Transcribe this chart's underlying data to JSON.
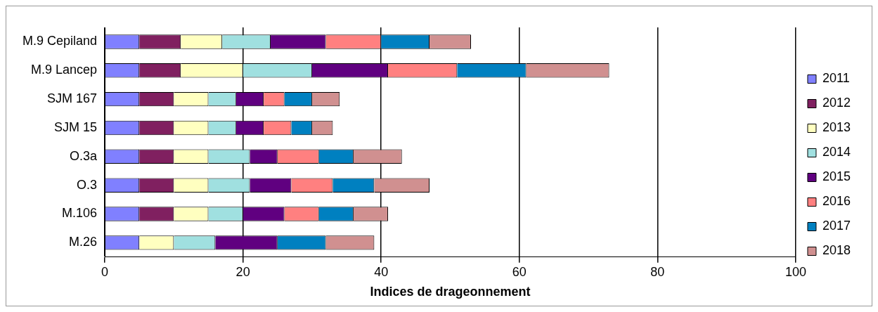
{
  "chart_data": {
    "type": "bar",
    "orientation": "horizontal",
    "stacked": true,
    "xlabel": "Indices de drageonnement",
    "categories": [
      "M.9 Cepiland",
      "M.9 Lancep",
      "SJM 167",
      "SJM 15",
      "O.3a",
      "O.3",
      "M.106",
      "M.26"
    ],
    "series": [
      {
        "name": "2011",
        "color": "#8080ff",
        "values": [
          5,
          5,
          5,
          5,
          5,
          5,
          5,
          5
        ]
      },
      {
        "name": "2012",
        "color": "#802060",
        "values": [
          6,
          6,
          5,
          5,
          5,
          5,
          5,
          0
        ]
      },
      {
        "name": "2013",
        "color": "#ffffc0",
        "values": [
          6,
          9,
          5,
          5,
          5,
          5,
          5,
          5
        ]
      },
      {
        "name": "2014",
        "color": "#a0e0e0",
        "values": [
          7,
          10,
          4,
          4,
          6,
          6,
          5,
          6
        ]
      },
      {
        "name": "2015",
        "color": "#600080",
        "values": [
          8,
          11,
          4,
          4,
          4,
          6,
          6,
          9
        ]
      },
      {
        "name": "2016",
        "color": "#ff8080",
        "values": [
          8,
          10,
          3,
          4,
          6,
          6,
          5,
          0
        ]
      },
      {
        "name": "2017",
        "color": "#0080c0",
        "values": [
          7,
          10,
          4,
          3,
          5,
          6,
          5,
          7
        ]
      },
      {
        "name": "2018",
        "color": "#d09090",
        "values": [
          6,
          12,
          4,
          3,
          7,
          8,
          5,
          7
        ]
      }
    ],
    "xlim": [
      0,
      100
    ],
    "xticks": [
      0,
      20,
      40,
      60,
      80,
      100
    ],
    "grid": "x",
    "legend": "right"
  }
}
